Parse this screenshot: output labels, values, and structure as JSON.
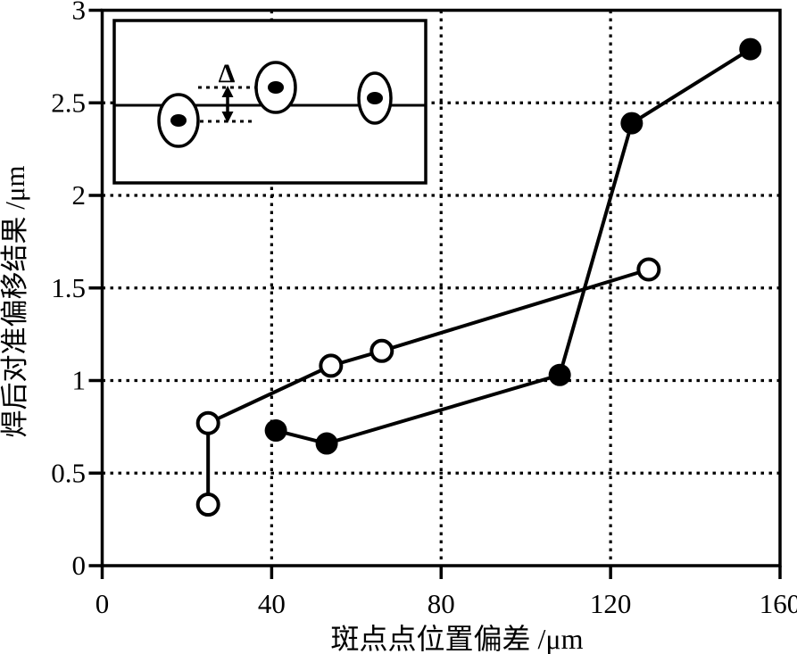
{
  "figure": {
    "background_color": "#ffffff",
    "ink_color": "#000000"
  },
  "chart_data": {
    "type": "line",
    "title": "",
    "xlabel": "斑点点位置偏差 /μm",
    "ylabel": "焊后对准偏移结果 /μm",
    "xlim": [
      0,
      160
    ],
    "ylim": [
      0,
      3
    ],
    "xticks": [
      0,
      40,
      80,
      120,
      160
    ],
    "xtick_labels": [
      "0",
      "40",
      "80",
      "120",
      "160"
    ],
    "yticks": [
      0,
      0.5,
      1,
      1.5,
      2,
      2.5,
      3
    ],
    "ytick_labels": [
      "0",
      "0.5",
      "1",
      "1.5",
      "2",
      "2.5",
      "3"
    ],
    "grid": {
      "style": "dotted",
      "x_at": [
        40,
        80,
        120
      ],
      "y_at": [
        0.5,
        1,
        1.5,
        2,
        2.5
      ]
    },
    "legend": null,
    "series": [
      {
        "name": "filled-circle-series",
        "marker": "filled-circle",
        "color": "#000000",
        "points": [
          [
            41,
            0.73
          ],
          [
            53,
            0.66
          ],
          [
            108,
            1.03
          ],
          [
            125,
            2.39
          ],
          [
            153,
            2.79
          ]
        ]
      },
      {
        "name": "open-circle-series",
        "marker": "open-circle",
        "color": "#000000",
        "points": [
          [
            25,
            0.33
          ],
          [
            25,
            0.77
          ],
          [
            54,
            1.08
          ],
          [
            66,
            1.16
          ],
          [
            129,
            1.6
          ]
        ]
      }
    ],
    "inset": {
      "description": "Schematic: three elliptical weld spots whose center dots are vertically offset from the horizontal seam line; dotted guides and a double-headed arrow mark the offset.",
      "delta_label": "Δ"
    }
  }
}
